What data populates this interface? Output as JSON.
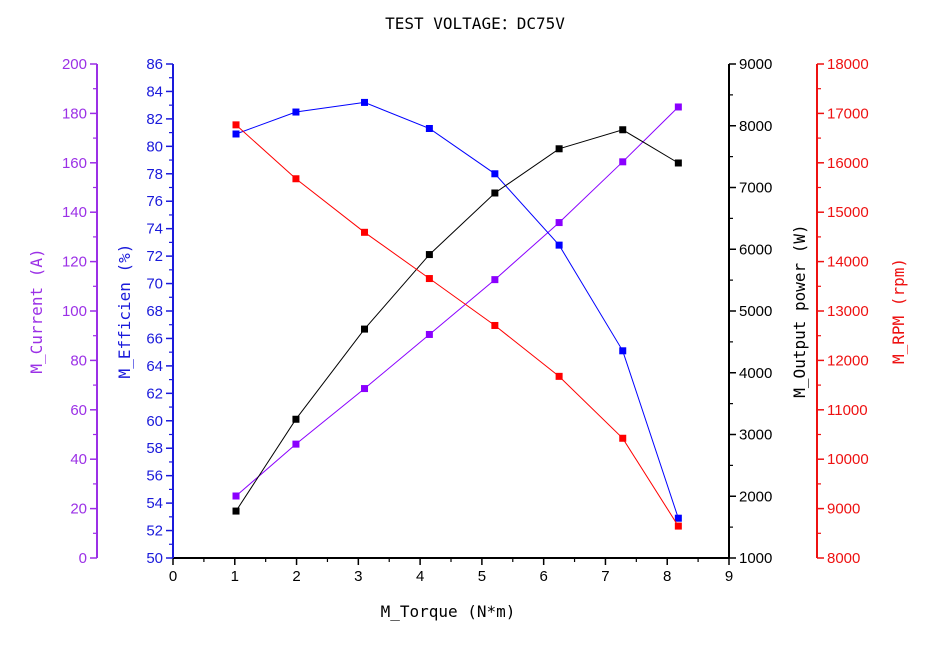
{
  "chart_data": {
    "type": "line",
    "title": "TEST VOLTAGE：DC75V",
    "xlabel": "M_Torque (N*m)",
    "xlim": [
      0,
      9
    ],
    "xticks": [
      0,
      1,
      2,
      3,
      4,
      5,
      6,
      7,
      8,
      9
    ],
    "x": [
      1.02,
      1.99,
      3.1,
      4.15,
      5.21,
      6.25,
      7.28,
      8.18
    ],
    "grid": false,
    "axes": [
      {
        "id": "current",
        "label": "M_Current (A)",
        "side": "left-outer",
        "color": "#9b30e6",
        "ylim": [
          0,
          200
        ],
        "ticks": [
          0,
          20,
          40,
          60,
          80,
          100,
          120,
          140,
          160,
          180,
          200
        ]
      },
      {
        "id": "eff",
        "label": "M_Efficien (%)",
        "side": "left",
        "color": "#1a1adb",
        "ylim": [
          50,
          86
        ],
        "ticks": [
          50,
          52,
          54,
          56,
          58,
          60,
          62,
          64,
          66,
          68,
          70,
          72,
          74,
          76,
          78,
          80,
          82,
          84,
          86
        ]
      },
      {
        "id": "power",
        "label": "M_Output power (W)",
        "side": "right",
        "color": "#000000",
        "ylim": [
          1000,
          9000
        ],
        "ticks": [
          1000,
          2000,
          3000,
          4000,
          5000,
          6000,
          7000,
          8000,
          9000
        ]
      },
      {
        "id": "rpm",
        "label": "M_RPM (rpm)",
        "side": "right-outer",
        "color": "#ee1111",
        "ylim": [
          8000,
          18000
        ],
        "ticks": [
          8000,
          9000,
          10000,
          11000,
          12000,
          13000,
          14000,
          15000,
          16000,
          17000,
          18000
        ]
      }
    ],
    "series": [
      {
        "axis": "current",
        "color": "#8a00ff",
        "values": [
          25.1,
          46.1,
          68.6,
          90.5,
          112.7,
          135.8,
          160.4,
          182.6
        ]
      },
      {
        "axis": "eff",
        "color": "#0000ff",
        "values": [
          80.9,
          82.5,
          83.2,
          81.3,
          78.0,
          72.8,
          65.1,
          52.9
        ]
      },
      {
        "axis": "power",
        "color": "#000000",
        "values": [
          1760,
          3247,
          4707,
          5914,
          6911,
          7627,
          7935,
          7397
        ]
      },
      {
        "axis": "rpm",
        "color": "#ff0000",
        "values": [
          16768,
          15677,
          14593,
          13657,
          12707,
          11677,
          10424,
          8646
        ]
      }
    ]
  }
}
